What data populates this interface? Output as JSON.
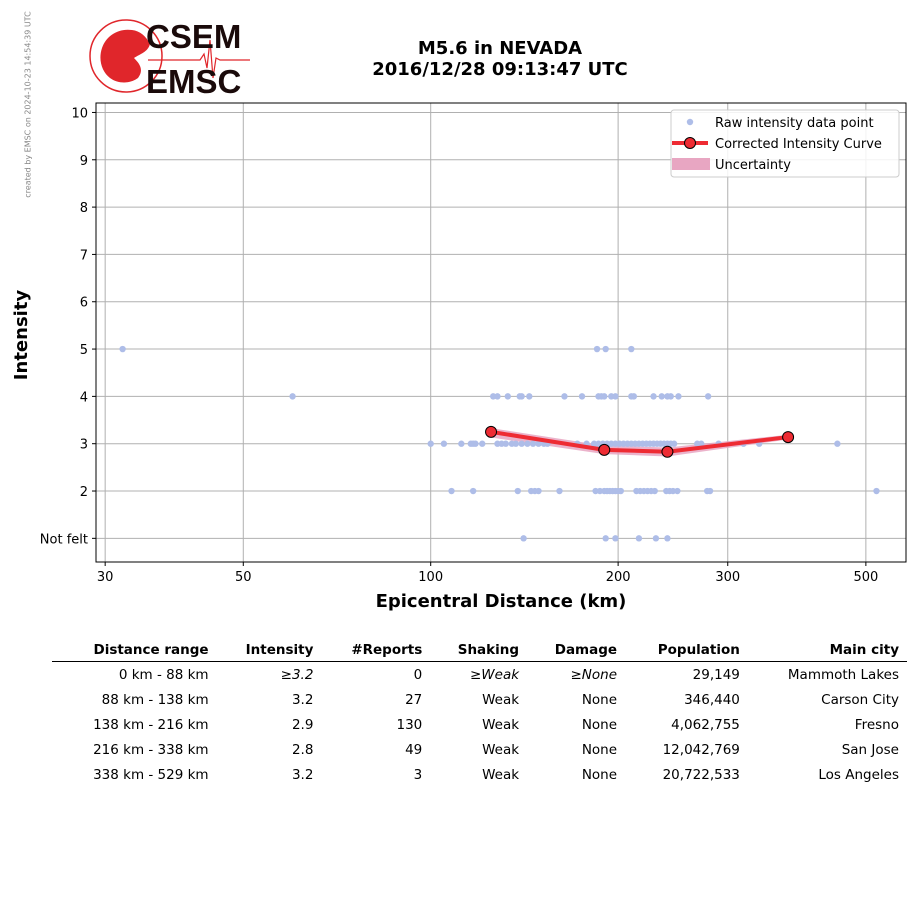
{
  "stamp": "created by EMSC on 2024-10-23 14:54:39 UTC",
  "logo": {
    "line1": "CSEM",
    "line2": "EMSC"
  },
  "title": {
    "line1": "M5.6 in NEVADA",
    "line2": "2016/12/28 09:13:47 UTC"
  },
  "colors": {
    "raw": "#aebde8",
    "curve": "#ee2b33",
    "uncertainty": "#e8a6c2",
    "grid": "#b0b0b0"
  },
  "chart_data": {
    "type": "scatter",
    "xscale": "log",
    "xlim": [
      29,
      580
    ],
    "ylim": [
      0.5,
      10.2
    ],
    "xticks": [
      {
        "v": 30,
        "label": "30"
      },
      {
        "v": 50,
        "label": "50"
      },
      {
        "v": 100,
        "label": "100"
      },
      {
        "v": 200,
        "label": "200"
      },
      {
        "v": 300,
        "label": "300"
      },
      {
        "v": 500,
        "label": "500"
      }
    ],
    "yticks": [
      {
        "v": 1,
        "label": "Not felt"
      },
      {
        "v": 2,
        "label": "2"
      },
      {
        "v": 3,
        "label": "3"
      },
      {
        "v": 4,
        "label": "4"
      },
      {
        "v": 5,
        "label": "5"
      },
      {
        "v": 6,
        "label": "6"
      },
      {
        "v": 7,
        "label": "7"
      },
      {
        "v": 8,
        "label": "8"
      },
      {
        "v": 9,
        "label": "9"
      },
      {
        "v": 10,
        "label": "10"
      }
    ],
    "xlabel": "Epicentral Distance (km)",
    "ylabel": "Intensity",
    "grid": true,
    "legend_position": "top-right",
    "legend": [
      "Raw intensity data point",
      "Corrected Intensity Curve",
      "Uncertainty"
    ],
    "raw_points": [
      [
        32,
        5
      ],
      [
        60,
        4
      ],
      [
        185,
        5
      ],
      [
        191,
        5
      ],
      [
        210,
        5
      ],
      [
        126,
        4
      ],
      [
        128,
        4
      ],
      [
        133,
        4
      ],
      [
        139,
        4
      ],
      [
        140,
        4
      ],
      [
        144,
        4
      ],
      [
        164,
        4
      ],
      [
        175,
        4
      ],
      [
        186,
        4
      ],
      [
        188,
        4
      ],
      [
        190,
        4
      ],
      [
        195,
        4
      ],
      [
        198,
        4
      ],
      [
        210,
        4
      ],
      [
        212,
        4
      ],
      [
        228,
        4
      ],
      [
        235,
        4
      ],
      [
        240,
        4
      ],
      [
        243,
        4
      ],
      [
        250,
        4
      ],
      [
        279,
        4
      ],
      [
        100,
        3
      ],
      [
        105,
        3
      ],
      [
        112,
        3
      ],
      [
        116,
        3
      ],
      [
        117,
        3
      ],
      [
        118,
        3
      ],
      [
        121,
        3
      ],
      [
        128,
        3
      ],
      [
        130,
        3
      ],
      [
        132,
        3
      ],
      [
        135,
        3
      ],
      [
        137,
        3
      ],
      [
        140,
        3
      ],
      [
        143,
        3
      ],
      [
        146,
        3
      ],
      [
        149,
        3
      ],
      [
        152,
        3
      ],
      [
        154,
        3
      ],
      [
        172,
        3
      ],
      [
        178,
        3
      ],
      [
        183,
        3
      ],
      [
        186,
        3
      ],
      [
        189,
        3
      ],
      [
        192,
        3
      ],
      [
        195,
        3
      ],
      [
        198,
        3
      ],
      [
        201,
        3
      ],
      [
        204,
        3
      ],
      [
        207,
        3
      ],
      [
        210,
        3
      ],
      [
        213,
        3
      ],
      [
        216,
        3
      ],
      [
        219,
        3
      ],
      [
        222,
        3
      ],
      [
        225,
        3
      ],
      [
        228,
        3
      ],
      [
        231,
        3
      ],
      [
        234,
        3
      ],
      [
        237,
        3
      ],
      [
        240,
        3
      ],
      [
        243,
        3
      ],
      [
        246,
        3
      ],
      [
        268,
        3
      ],
      [
        272,
        3
      ],
      [
        290,
        3
      ],
      [
        318,
        3
      ],
      [
        337,
        3
      ],
      [
        450,
        3
      ],
      [
        108,
        2
      ],
      [
        117,
        2
      ],
      [
        138,
        2
      ],
      [
        145,
        2
      ],
      [
        147,
        2
      ],
      [
        149,
        2
      ],
      [
        161,
        2
      ],
      [
        184,
        2
      ],
      [
        187,
        2
      ],
      [
        190,
        2
      ],
      [
        192,
        2
      ],
      [
        194,
        2
      ],
      [
        196,
        2
      ],
      [
        198,
        2
      ],
      [
        200,
        2
      ],
      [
        202,
        2
      ],
      [
        214,
        2
      ],
      [
        217,
        2
      ],
      [
        220,
        2
      ],
      [
        223,
        2
      ],
      [
        226,
        2
      ],
      [
        229,
        2
      ],
      [
        239,
        2
      ],
      [
        242,
        2
      ],
      [
        245,
        2
      ],
      [
        249,
        2
      ],
      [
        278,
        2
      ],
      [
        281,
        2
      ],
      [
        520,
        2
      ],
      [
        141,
        1
      ],
      [
        191,
        1
      ],
      [
        198,
        1
      ],
      [
        216,
        1
      ],
      [
        230,
        1
      ],
      [
        240,
        1
      ]
    ],
    "curve": [
      {
        "x": 125,
        "y": 3.25,
        "lo": 3.13,
        "hi": 3.33
      },
      {
        "x": 190,
        "y": 2.87,
        "lo": 2.78,
        "hi": 2.96
      },
      {
        "x": 240,
        "y": 2.83,
        "lo": 2.73,
        "hi": 2.92
      },
      {
        "x": 375,
        "y": 3.14,
        "lo": 3.09,
        "hi": 3.19
      }
    ]
  },
  "table": {
    "headers": [
      "Distance range",
      "Intensity",
      "#Reports",
      "Shaking",
      "Damage",
      "Population",
      "Main city"
    ],
    "rows": [
      [
        "0 km -   88 km",
        "≥3.2",
        "0",
        "≥Weak",
        "≥None",
        "29,149",
        "Mammoth Lakes"
      ],
      [
        "88 km -  138 km",
        "3.2",
        "27",
        "Weak",
        "None",
        "346,440",
        "Carson City"
      ],
      [
        "138 km -  216 km",
        "2.9",
        "130",
        "Weak",
        "None",
        "4,062,755",
        "Fresno"
      ],
      [
        "216 km -  338 km",
        "2.8",
        "49",
        "Weak",
        "None",
        "12,042,769",
        "San Jose"
      ],
      [
        "338 km -  529 km",
        "3.2",
        "3",
        "Weak",
        "None",
        "20,722,533",
        "Los Angeles"
      ]
    ]
  }
}
